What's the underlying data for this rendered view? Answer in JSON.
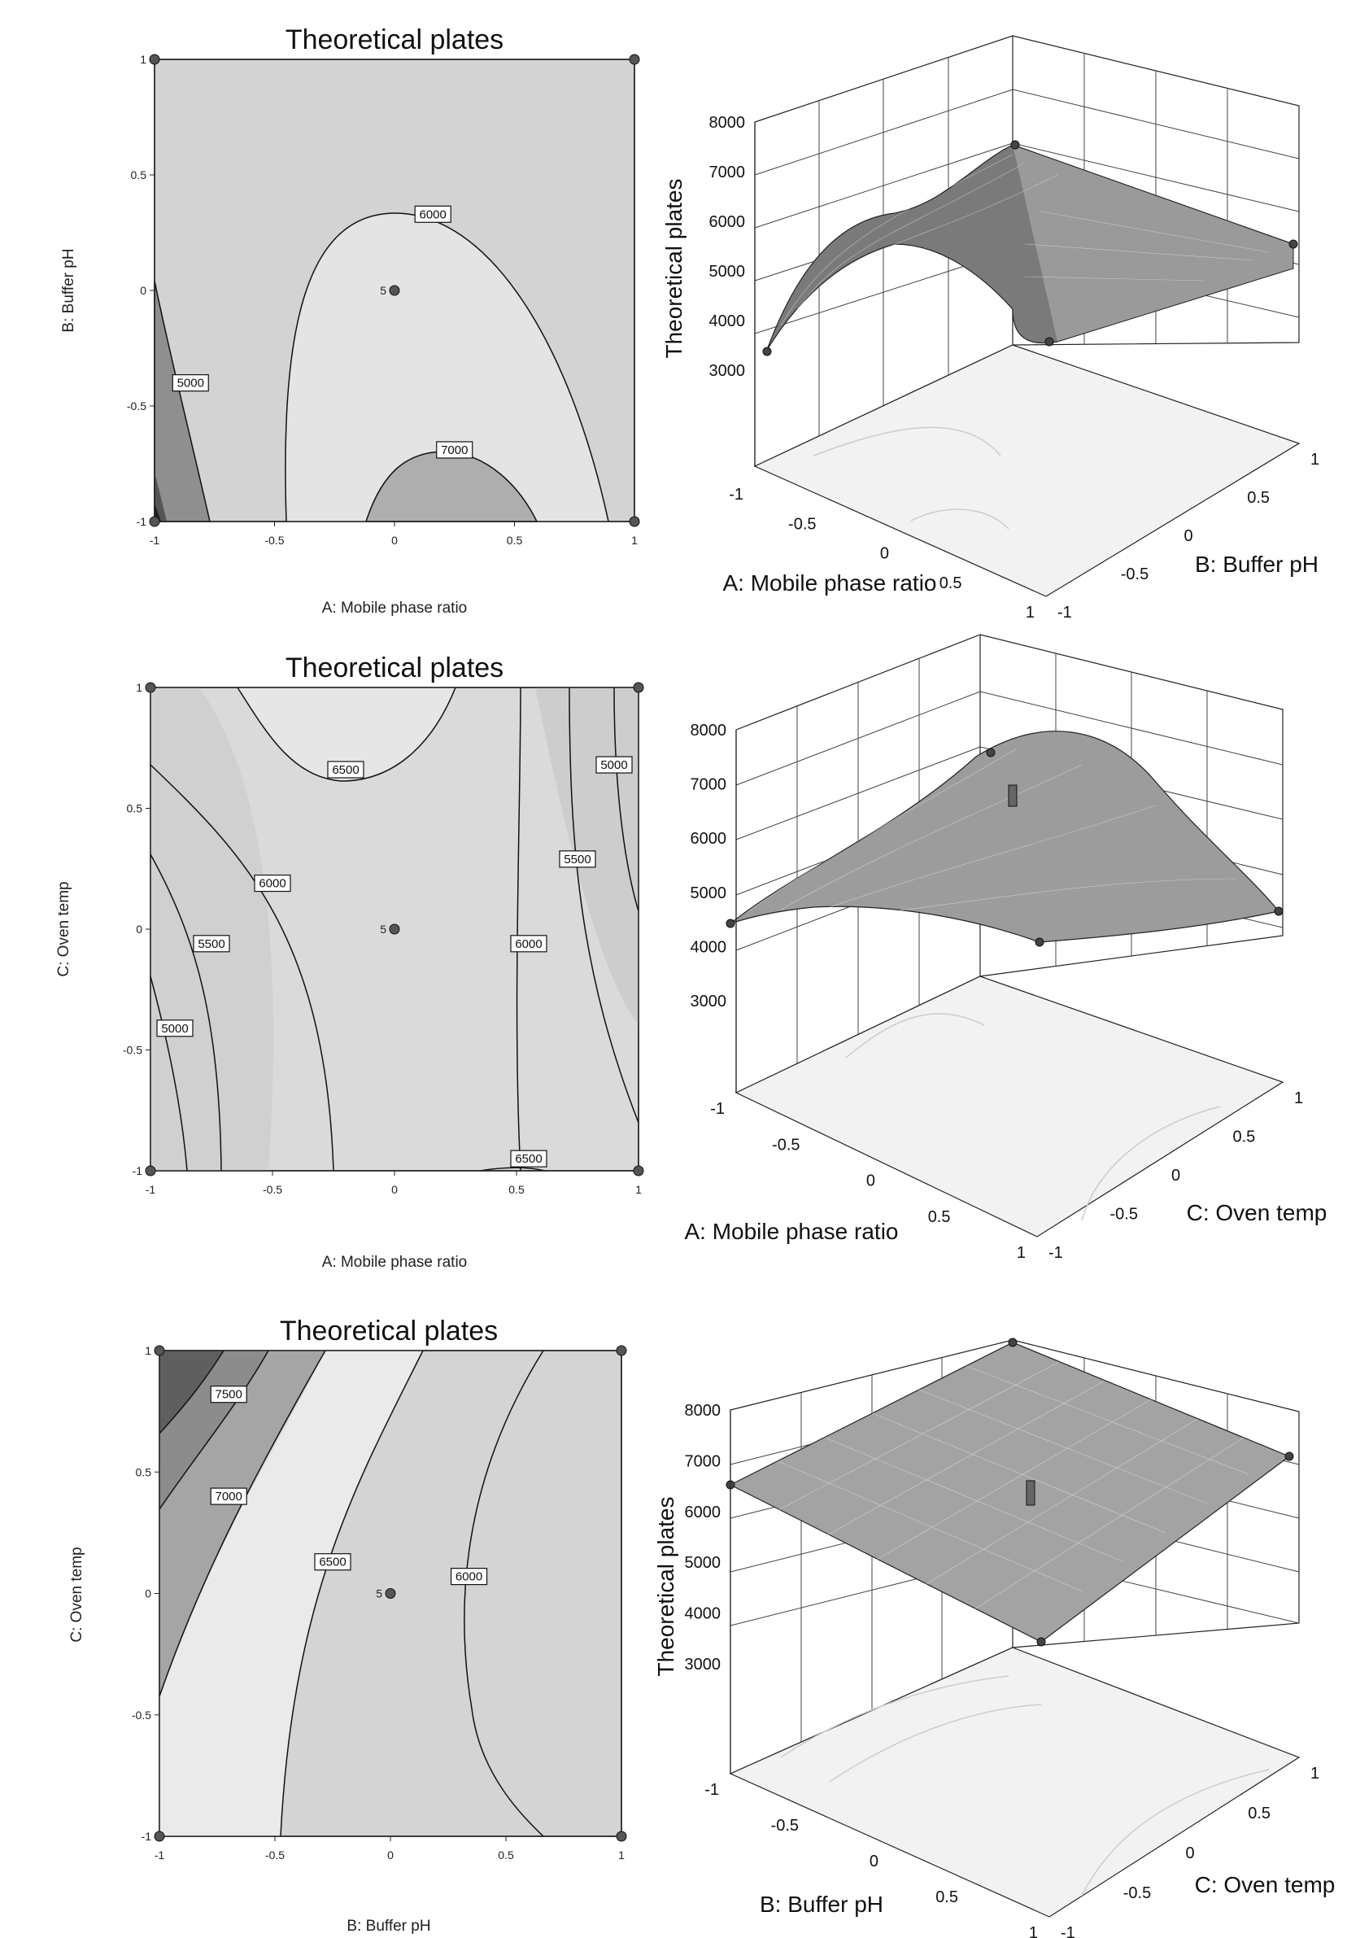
{
  "chart_data": [
    {
      "type": "contour",
      "title": "Theoretical plates",
      "xlabel": "A: Mobile phase ratio",
      "ylabel": "B: Buffer pH",
      "xlim": [
        -1,
        1
      ],
      "ylim": [
        -1,
        1
      ],
      "ticks": [
        "-1",
        "-0.5",
        "0",
        "0.5",
        "1"
      ],
      "contour_labels": [
        {
          "text": "6000",
          "x": 0.16,
          "y": 0.33
        },
        {
          "text": "5000",
          "x": -0.85,
          "y": -0.4
        },
        {
          "text": "7000",
          "x": 0.25,
          "y": -0.69
        }
      ],
      "center_point": {
        "label": "5",
        "x": 0,
        "y": 0
      },
      "design_points": [
        [
          -1,
          1
        ],
        [
          1,
          1
        ],
        [
          -1,
          -1
        ],
        [
          1,
          -1
        ],
        [
          0,
          0
        ]
      ]
    },
    {
      "type": "surface",
      "zlabel": "Theoretical plates",
      "xlabel": "A: Mobile phase ratio",
      "ylabel": "B: Buffer pH",
      "zticks": [
        "3000",
        "4000",
        "5000",
        "6000",
        "7000",
        "8000"
      ],
      "xticks": [
        "-1",
        "-0.5",
        "0",
        "0.5",
        "1"
      ],
      "yticks": [
        "-1",
        "-0.5",
        "0",
        "0.5",
        "1"
      ],
      "zlim": [
        3000,
        8000
      ]
    },
    {
      "type": "contour",
      "title": "Theoretical plates",
      "xlabel": "A: Mobile phase ratio",
      "ylabel": "C: Oven temp",
      "xlim": [
        -1,
        1
      ],
      "ylim": [
        -1,
        1
      ],
      "ticks": [
        "-1",
        "-0.5",
        "0",
        "0.5",
        "1"
      ],
      "contour_labels": [
        {
          "text": "6500",
          "x": -0.2,
          "y": 0.66
        },
        {
          "text": "5000",
          "x": 0.9,
          "y": 0.68
        },
        {
          "text": "5500",
          "x": 0.75,
          "y": 0.29
        },
        {
          "text": "6000",
          "x": -0.5,
          "y": 0.19
        },
        {
          "text": "5500",
          "x": -0.75,
          "y": -0.06
        },
        {
          "text": "6000",
          "x": 0.55,
          "y": -0.06
        },
        {
          "text": "5000",
          "x": -0.9,
          "y": -0.41
        },
        {
          "text": "6500",
          "x": 0.55,
          "y": -0.95
        }
      ],
      "center_point": {
        "label": "5",
        "x": 0,
        "y": 0
      },
      "design_points": [
        [
          -1,
          1
        ],
        [
          1,
          1
        ],
        [
          -1,
          -1
        ],
        [
          1,
          -1
        ],
        [
          0,
          0
        ]
      ]
    },
    {
      "type": "surface",
      "zlabel": "",
      "xlabel": "A: Mobile phase ratio",
      "ylabel": "C: Oven temp",
      "zticks": [
        "3000",
        "4000",
        "5000",
        "6000",
        "7000",
        "8000"
      ],
      "xticks": [
        "-1",
        "-0.5",
        "0",
        "0.5",
        "1"
      ],
      "yticks": [
        "-1",
        "-0.5",
        "0",
        "0.5",
        "1"
      ],
      "zlim": [
        3000,
        8000
      ]
    },
    {
      "type": "contour",
      "title": "Theoretical plates",
      "xlabel": "B: Buffer pH",
      "ylabel": "C: Oven temp",
      "xlim": [
        -1,
        1
      ],
      "ylim": [
        -1,
        1
      ],
      "ticks": [
        "-1",
        "-0.5",
        "0",
        "0.5",
        "1"
      ],
      "contour_labels": [
        {
          "text": "7500",
          "x": -0.7,
          "y": 0.82
        },
        {
          "text": "7000",
          "x": -0.7,
          "y": 0.4
        },
        {
          "text": "6500",
          "x": -0.25,
          "y": 0.13
        },
        {
          "text": "6000",
          "x": 0.34,
          "y": 0.07
        }
      ],
      "center_point": {
        "label": "5",
        "x": 0,
        "y": 0
      },
      "design_points": [
        [
          -1,
          1
        ],
        [
          1,
          1
        ],
        [
          -1,
          -1
        ],
        [
          1,
          -1
        ],
        [
          0,
          0
        ]
      ]
    },
    {
      "type": "surface",
      "zlabel": "Theoretical plates",
      "xlabel": "B: Buffer pH",
      "ylabel": "C: Oven temp",
      "zticks": [
        "3000",
        "4000",
        "5000",
        "6000",
        "7000",
        "8000"
      ],
      "xticks": [
        "-1",
        "-0.5",
        "0",
        "0.5",
        "1"
      ],
      "yticks": [
        "-1",
        "-0.5",
        "0",
        "0.5",
        "1"
      ],
      "zlim": [
        3000,
        8000
      ]
    }
  ]
}
